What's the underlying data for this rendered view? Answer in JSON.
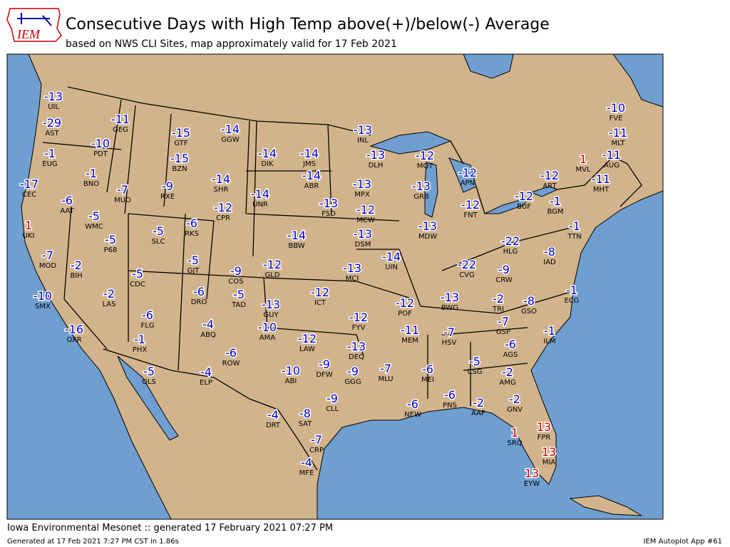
{
  "header": {
    "logo_text": "IEM",
    "title": "Consecutive Days with High Temp above(+)/below(-) Average",
    "subtitle": "based on NWS CLI Sites, map approximately valid for 17 Feb 2021"
  },
  "map": {
    "negative_color": "#0000cc",
    "positive_color": "#cc0000",
    "stations": [
      {
        "code": "UIL",
        "value": -13
      },
      {
        "code": "AST",
        "value": -29
      },
      {
        "code": "GEG",
        "value": -11
      },
      {
        "code": "GTF",
        "value": -15
      },
      {
        "code": "GGW",
        "value": -14
      },
      {
        "code": "PDT",
        "value": -10
      },
      {
        "code": "EUG",
        "value": -1
      },
      {
        "code": "BZN",
        "value": -15
      },
      {
        "code": "BNO",
        "value": -1
      },
      {
        "code": "CEC",
        "value": -17
      },
      {
        "code": "SHR",
        "value": -14
      },
      {
        "code": "MUO",
        "value": -7
      },
      {
        "code": "RXE",
        "value": -9
      },
      {
        "code": "AAT",
        "value": -6
      },
      {
        "code": "CPR",
        "value": -12
      },
      {
        "code": "WMC",
        "value": -5
      },
      {
        "code": "RKS",
        "value": -6
      },
      {
        "code": "SLC",
        "value": -5
      },
      {
        "code": "UKI",
        "value": 1
      },
      {
        "code": "P68",
        "value": -5
      },
      {
        "code": "MOD",
        "value": -7
      },
      {
        "code": "GJT",
        "value": -5
      },
      {
        "code": "BIH",
        "value": -2
      },
      {
        "code": "CDC",
        "value": -5
      },
      {
        "code": "COS",
        "value": -9
      },
      {
        "code": "DRO",
        "value": -6
      },
      {
        "code": "TAD",
        "value": -5
      },
      {
        "code": "LAS",
        "value": -2
      },
      {
        "code": "SMX",
        "value": -10
      },
      {
        "code": "FLG",
        "value": -6
      },
      {
        "code": "ABQ",
        "value": -4
      },
      {
        "code": "OXR",
        "value": -16
      },
      {
        "code": "PHX",
        "value": -1
      },
      {
        "code": "ROW",
        "value": -6
      },
      {
        "code": "OLS",
        "value": -5
      },
      {
        "code": "ELP",
        "value": -4
      },
      {
        "code": "DIK",
        "value": -14
      },
      {
        "code": "JMS",
        "value": -14
      },
      {
        "code": "ABR",
        "value": -14
      },
      {
        "code": "UNR",
        "value": -14
      },
      {
        "code": "FSD",
        "value": -13
      },
      {
        "code": "INL",
        "value": -13
      },
      {
        "code": "DLH",
        "value": -13
      },
      {
        "code": "MPX",
        "value": -13
      },
      {
        "code": "MCW",
        "value": -12
      },
      {
        "code": "DSM",
        "value": -13
      },
      {
        "code": "BBW",
        "value": -14
      },
      {
        "code": "GLD",
        "value": -12
      },
      {
        "code": "MCI",
        "value": -13
      },
      {
        "code": "ICT",
        "value": -12
      },
      {
        "code": "GUY",
        "value": -13
      },
      {
        "code": "AMA",
        "value": -10
      },
      {
        "code": "LAW",
        "value": -12
      },
      {
        "code": "DFW",
        "value": -9
      },
      {
        "code": "ABI",
        "value": -10
      },
      {
        "code": "GGG",
        "value": -9
      },
      {
        "code": "DEQ",
        "value": -13
      },
      {
        "code": "FYV",
        "value": -12
      },
      {
        "code": "POF",
        "value": -12
      },
      {
        "code": "MEM",
        "value": -11
      },
      {
        "code": "MLU",
        "value": -7
      },
      {
        "code": "CLL",
        "value": -9
      },
      {
        "code": "DRT",
        "value": -4
      },
      {
        "code": "SAT",
        "value": -8
      },
      {
        "code": "CRP",
        "value": -7
      },
      {
        "code": "MFE",
        "value": -4
      },
      {
        "code": "MQT",
        "value": -12
      },
      {
        "code": "GRB",
        "value": -13
      },
      {
        "code": "MDW",
        "value": -13
      },
      {
        "code": "UIN",
        "value": -14
      },
      {
        "code": "APN",
        "value": -12
      },
      {
        "code": "FNT",
        "value": -12
      },
      {
        "code": "CVG",
        "value": -22
      },
      {
        "code": "HLG",
        "value": -22
      },
      {
        "code": "BWG",
        "value": -13
      },
      {
        "code": "HSV",
        "value": -7
      },
      {
        "code": "MEI",
        "value": -6
      },
      {
        "code": "NEW",
        "value": -6
      },
      {
        "code": "PNS",
        "value": -6
      },
      {
        "code": "AAF",
        "value": -2
      },
      {
        "code": "CSG",
        "value": -5
      },
      {
        "code": "AMG",
        "value": -2
      },
      {
        "code": "GNV",
        "value": -2
      },
      {
        "code": "SRQ",
        "value": 1
      },
      {
        "code": "FPR",
        "value": 13
      },
      {
        "code": "MIA",
        "value": 13
      },
      {
        "code": "EYW",
        "value": 13
      },
      {
        "code": "AGS",
        "value": -6
      },
      {
        "code": "GSP",
        "value": -7
      },
      {
        "code": "TRI",
        "value": -2
      },
      {
        "code": "CRW",
        "value": -9
      },
      {
        "code": "GSO",
        "value": -8
      },
      {
        "code": "IAD",
        "value": -8
      },
      {
        "code": "BUF",
        "value": -12
      },
      {
        "code": "ART",
        "value": -12
      },
      {
        "code": "BGM",
        "value": -1
      },
      {
        "code": "TTN",
        "value": -1
      },
      {
        "code": "ECG",
        "value": -1
      },
      {
        "code": "ILM",
        "value": -1
      },
      {
        "code": "MVL",
        "value": 1
      },
      {
        "code": "MHT",
        "value": -11
      },
      {
        "code": "FVE",
        "value": -10
      },
      {
        "code": "MLT",
        "value": -11
      },
      {
        "code": "AUG",
        "value": -11
      }
    ]
  },
  "footer": {
    "credit": "Iowa Environmental Mesonet :: generated 17 February 2021 07:27 PM",
    "generated": "Generated at 17 Feb 2021 7:27 PM CST in 1.86s",
    "app": "IEM Autoplot App #61"
  }
}
